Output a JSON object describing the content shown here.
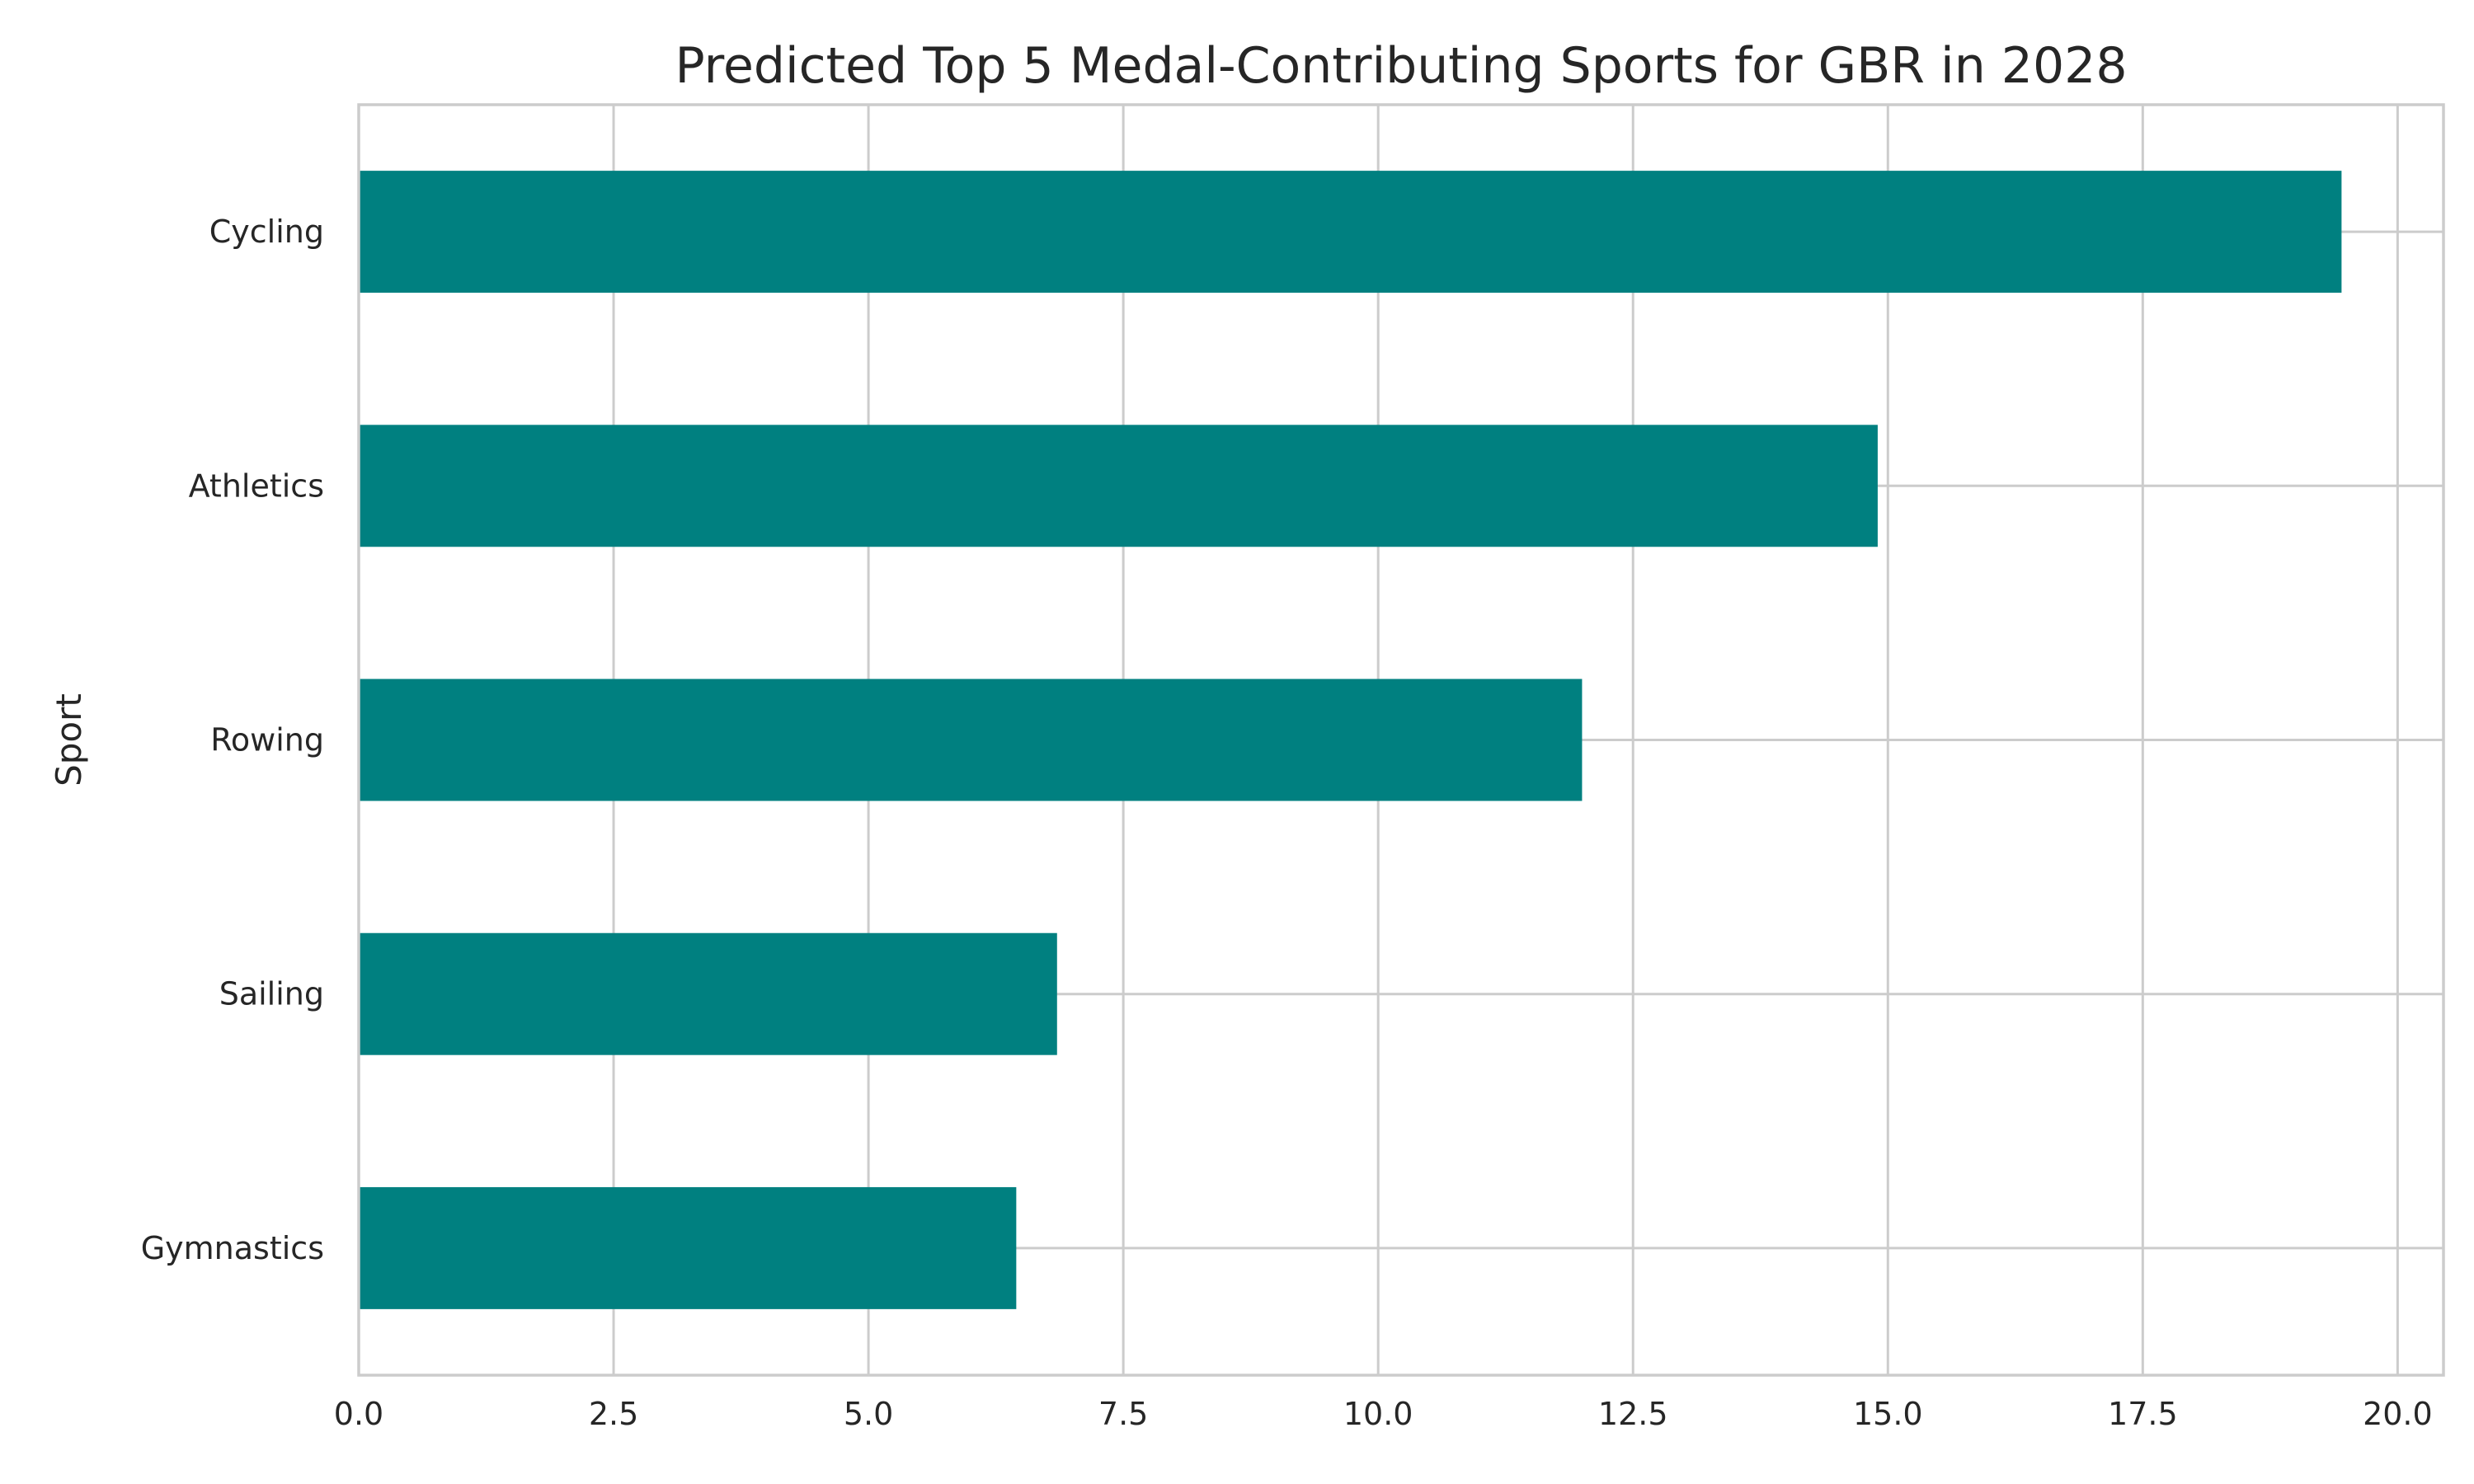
{
  "chart_data": {
    "type": "bar",
    "orientation": "horizontal",
    "title": "Predicted Top 5 Medal-Contributing Sports for GBR in 2028",
    "xlabel": "",
    "ylabel": "Sport",
    "categories": [
      "Cycling",
      "Athletics",
      "Rowing",
      "Sailing",
      "Gymnastics"
    ],
    "values": [
      19.45,
      14.9,
      12.0,
      6.85,
      6.45
    ],
    "xlim": [
      0,
      20.45
    ],
    "xticks": [
      0.0,
      2.5,
      5.0,
      7.5,
      10.0,
      12.5,
      15.0,
      17.5,
      20.0
    ],
    "xtick_labels": [
      "0.0",
      "2.5",
      "5.0",
      "7.5",
      "10.0",
      "12.5",
      "15.0",
      "17.5",
      "20.0"
    ],
    "grid": true,
    "colors": {
      "bar": "#008080",
      "grid": "#cccccc",
      "text": "#262626"
    }
  }
}
